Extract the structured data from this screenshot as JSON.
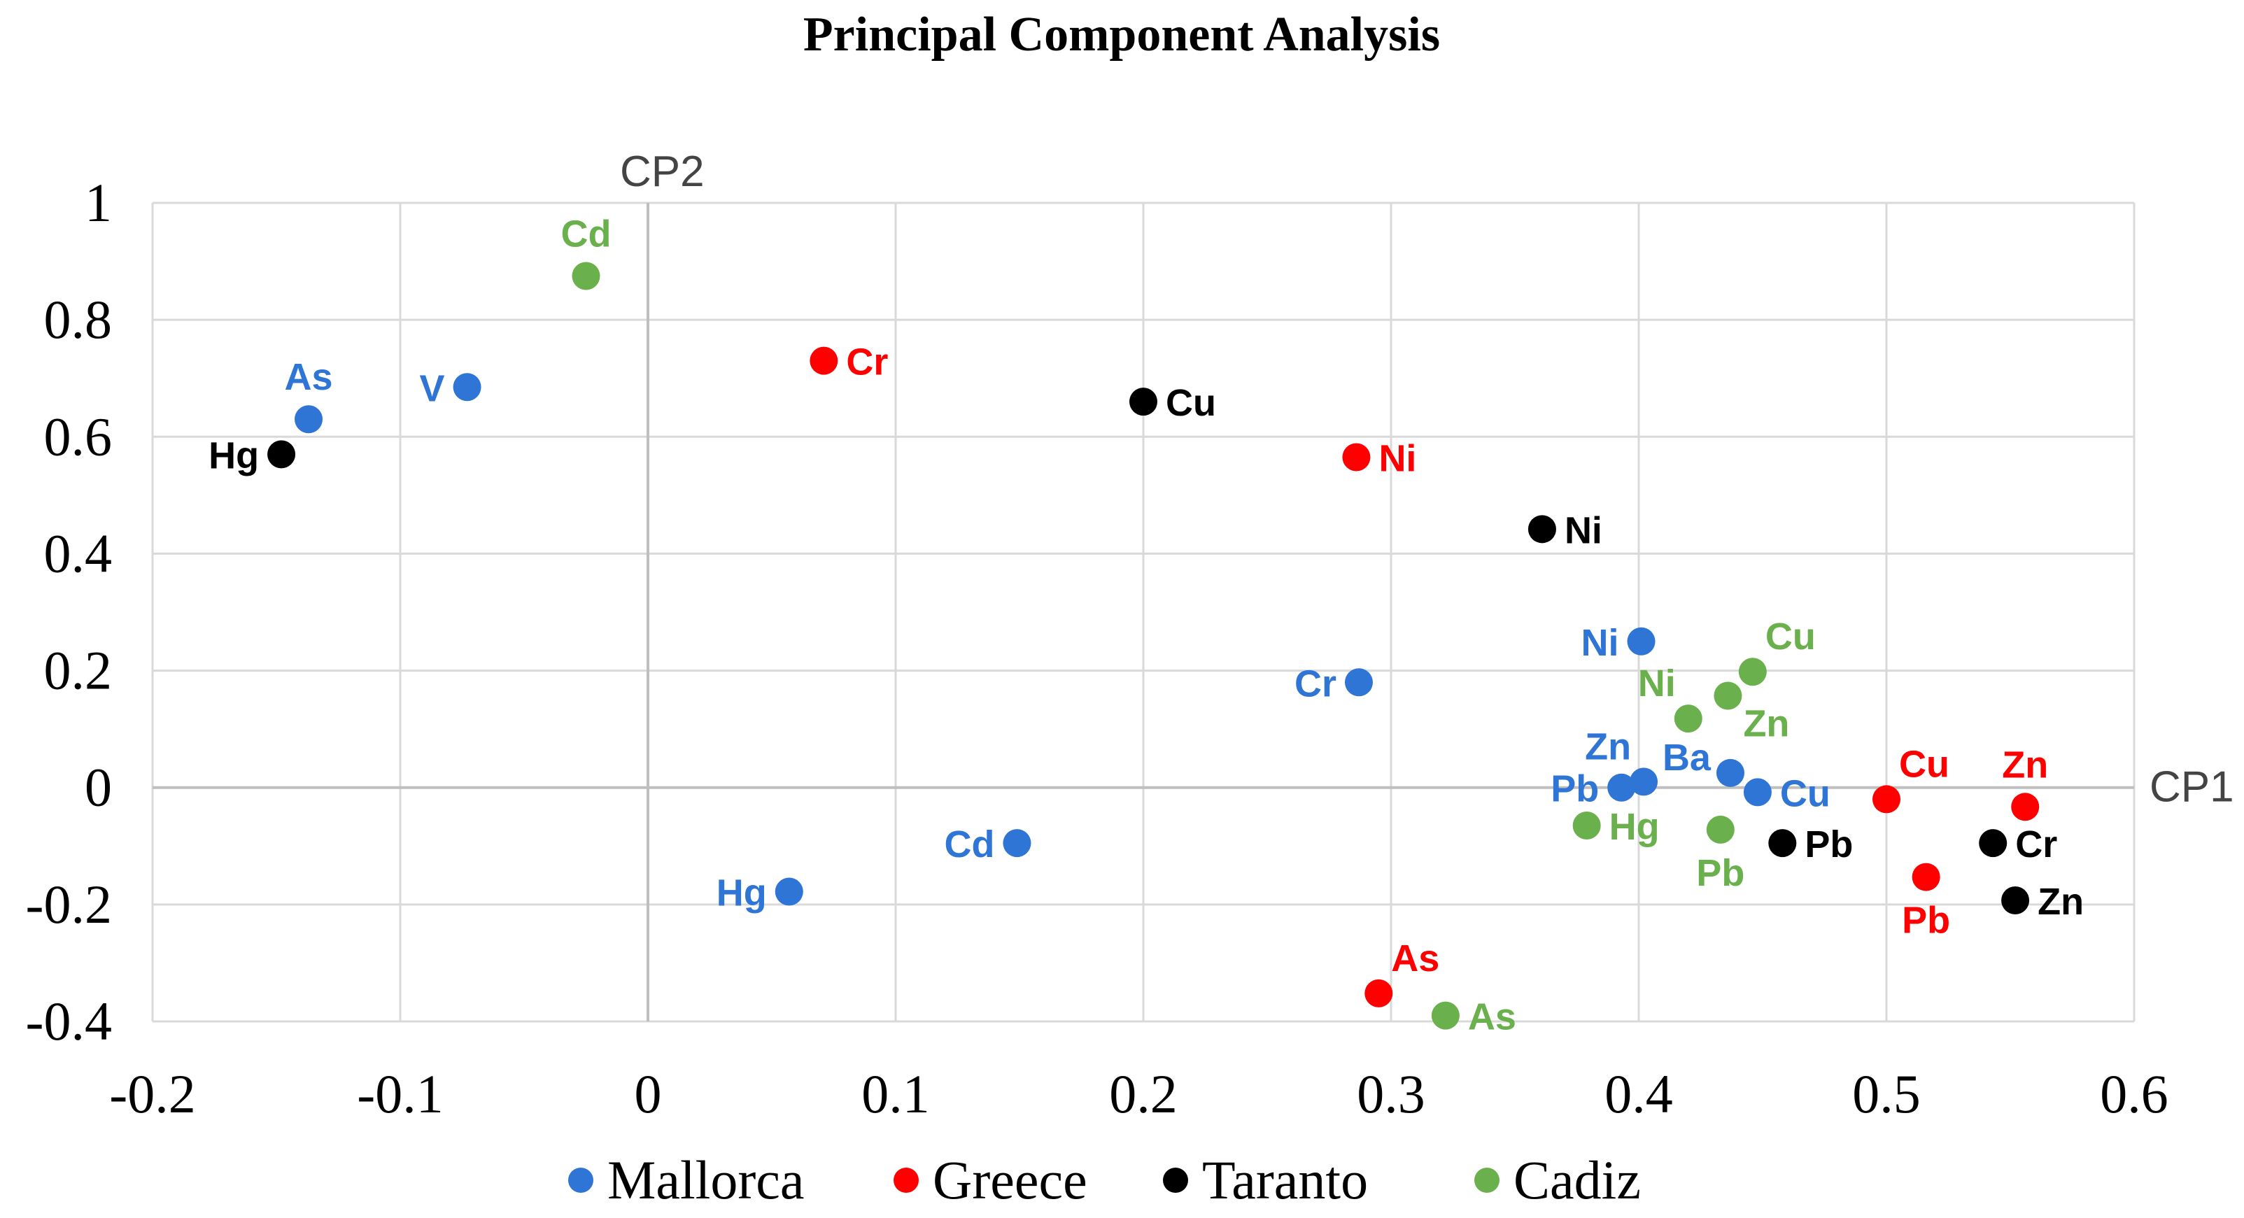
{
  "chart_data": {
    "type": "scatter",
    "title": "Principal Component Analysis",
    "xlabel": "CP1",
    "ylabel": "CP2",
    "xlim": [
      -0.2,
      0.6
    ],
    "ylim": [
      -0.4,
      1
    ],
    "xticks": [
      "-0.2",
      "-0.1",
      "0",
      "0.1",
      "0.2",
      "0.3",
      "0.4",
      "0.5",
      "0.6"
    ],
    "xtick_values": [
      -0.2,
      -0.1,
      0,
      0.1,
      0.2,
      0.3,
      0.4,
      0.5,
      0.6
    ],
    "yticks": [
      "-0.4",
      "-0.2",
      "0",
      "0.2",
      "0.4",
      "0.6",
      "0.8",
      "1"
    ],
    "ytick_values": [
      -0.4,
      -0.2,
      0,
      0.2,
      0.4,
      0.6,
      0.8,
      1
    ],
    "grid": true,
    "legend_position": "bottom",
    "series": [
      {
        "name": "Mallorca",
        "color": "#2e75d6",
        "points": [
          {
            "label": "As",
            "x": -0.137,
            "y": 0.63,
            "label_side": "top"
          },
          {
            "label": "V",
            "x": -0.073,
            "y": 0.685,
            "label_side": "left"
          },
          {
            "label": "Cr",
            "x": 0.287,
            "y": 0.18,
            "label_side": "left"
          },
          {
            "label": "Ni",
            "x": 0.401,
            "y": 0.25,
            "label_side": "left"
          },
          {
            "label": "Ba",
            "x": 0.437,
            "y": 0.025,
            "label_side": "leftup"
          },
          {
            "label": "Zn",
            "x": 0.402,
            "y": 0.01,
            "label_side": "topleft"
          },
          {
            "label": "Pb",
            "x": 0.393,
            "y": 0.0,
            "label_side": "left"
          },
          {
            "label": "Cu",
            "x": 0.448,
            "y": -0.008,
            "label_side": "right"
          },
          {
            "label": "Cd",
            "x": 0.149,
            "y": -0.095,
            "label_side": "left"
          },
          {
            "label": "Hg",
            "x": 0.057,
            "y": -0.178,
            "label_side": "left"
          }
        ]
      },
      {
        "name": "Greece",
        "color": "#ff0000",
        "points": [
          {
            "label": "Cr",
            "x": 0.071,
            "y": 0.73,
            "label_side": "right"
          },
          {
            "label": "Ni",
            "x": 0.286,
            "y": 0.565,
            "label_side": "right"
          },
          {
            "label": "Cu",
            "x": 0.5,
            "y": -0.02,
            "label_side": "topright"
          },
          {
            "label": "Zn",
            "x": 0.556,
            "y": -0.033,
            "label_side": "top"
          },
          {
            "label": "Pb",
            "x": 0.516,
            "y": -0.153,
            "label_side": "bottom"
          },
          {
            "label": "As",
            "x": 0.295,
            "y": -0.352,
            "label_side": "topright"
          }
        ]
      },
      {
        "name": "Taranto",
        "color": "#000000",
        "points": [
          {
            "label": "Hg",
            "x": -0.148,
            "y": 0.57,
            "label_side": "left"
          },
          {
            "label": "Cu",
            "x": 0.2,
            "y": 0.66,
            "label_side": "right"
          },
          {
            "label": "Ni",
            "x": 0.361,
            "y": 0.442,
            "label_side": "right"
          },
          {
            "label": "Pb",
            "x": 0.458,
            "y": -0.095,
            "label_side": "right"
          },
          {
            "label": "Cr",
            "x": 0.543,
            "y": -0.095,
            "label_side": "right"
          },
          {
            "label": "Zn",
            "x": 0.552,
            "y": -0.193,
            "label_side": "right"
          }
        ]
      },
      {
        "name": "Cadiz",
        "color": "#6ab04c",
        "points": [
          {
            "label": "Cd",
            "x": -0.025,
            "y": 0.875,
            "label_side": "top"
          },
          {
            "label": "Cu",
            "x": 0.446,
            "y": 0.198,
            "label_side": "topright"
          },
          {
            "label": "Ni",
            "x": 0.42,
            "y": 0.118,
            "label_side": "topleft"
          },
          {
            "label": "Zn",
            "x": 0.436,
            "y": 0.157,
            "label_side": "bottomright"
          },
          {
            "label": "Hg",
            "x": 0.379,
            "y": -0.065,
            "label_side": "right"
          },
          {
            "label": "Pb",
            "x": 0.433,
            "y": -0.072,
            "label_side": "bottom"
          },
          {
            "label": "As",
            "x": 0.322,
            "y": -0.39,
            "label_side": "right"
          }
        ]
      }
    ]
  }
}
